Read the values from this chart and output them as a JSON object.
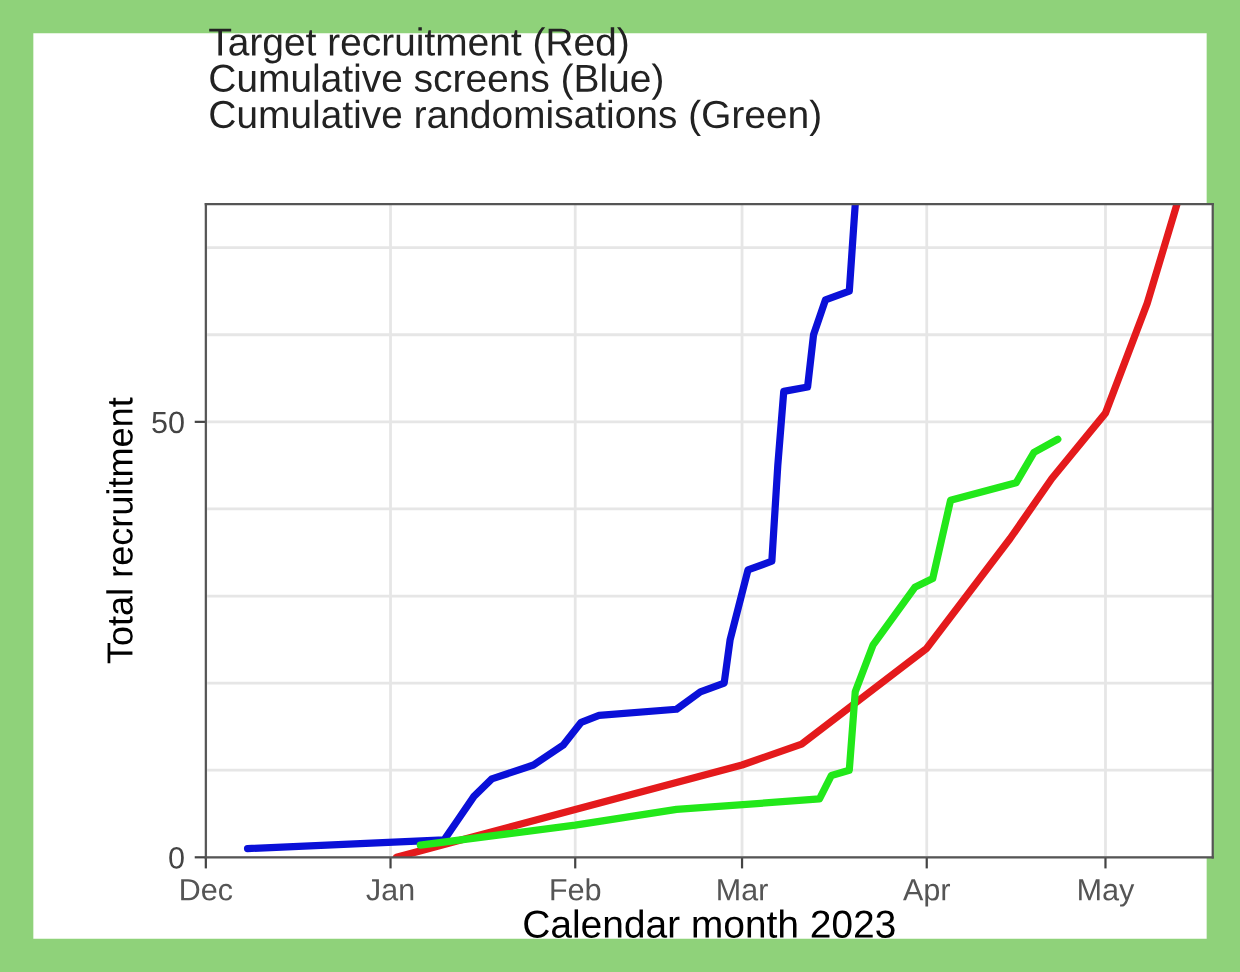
{
  "chart_data": {
    "type": "line",
    "title": "Target recruitment (Red)\nCumulative screens (Blue)\nCumulative randomisations (Green)",
    "xlabel": "Calendar month 2023",
    "ylabel": "Total recruitment",
    "xlim": [
      "2022-12-01",
      "2023-05-19"
    ],
    "ylim": [
      0,
      75
    ],
    "xticks": [
      {
        "value": "2022-12-01",
        "label": "Dec"
      },
      {
        "value": "2023-01-01",
        "label": "Jan"
      },
      {
        "value": "2023-02-01",
        "label": "Feb"
      },
      {
        "value": "2023-03-01",
        "label": "Mar"
      },
      {
        "value": "2023-04-01",
        "label": "Apr"
      },
      {
        "value": "2023-05-01",
        "label": "May"
      }
    ],
    "yticks": [
      0,
      {
        "value": 10,
        "label": null
      },
      {
        "value": 20,
        "label": null
      },
      {
        "value": 30,
        "label": null
      },
      {
        "value": 40,
        "label": null
      },
      50,
      {
        "value": 60,
        "label": null
      },
      {
        "value": 70,
        "label": null
      }
    ],
    "grid": true,
    "line_style": "solid",
    "series": [
      {
        "color": "#e41a1c",
        "x": [
          "2023-01-02",
          "2023-02-01",
          "2023-03-01",
          "2023-03-11",
          "2023-04-01",
          "2023-04-15",
          "2023-04-22",
          "2023-05-01",
          "2023-05-08",
          "2023-05-13"
        ],
        "values": [
          0,
          5.5,
          10.6,
          13,
          24,
          36.6,
          43.5,
          51,
          63.6,
          75
        ]
      },
      {
        "color": "#0a10d8",
        "x": [
          "2022-12-08",
          "2023-01-10",
          "2023-01-12",
          "2023-01-15",
          "2023-01-18",
          "2023-01-25",
          "2023-01-30",
          "2023-02-02",
          "2023-02-05",
          "2023-02-18",
          "2023-02-22",
          "2023-02-26",
          "2023-02-27",
          "2023-03-02",
          "2023-03-06",
          "2023-03-07",
          "2023-03-08",
          "2023-03-12",
          "2023-03-13",
          "2023-03-15",
          "2023-03-19",
          "2023-03-20"
        ],
        "values": [
          1,
          2,
          4,
          7,
          9,
          10.6,
          12.9,
          15.5,
          16.3,
          17,
          19,
          20,
          25,
          33,
          34,
          45,
          53.5,
          54,
          60,
          64,
          65,
          75
        ]
      },
      {
        "color": "#22e81a",
        "x": [
          "2023-01-06",
          "2023-02-01",
          "2023-02-18",
          "2023-03-14",
          "2023-03-16",
          "2023-03-19",
          "2023-03-20",
          "2023-03-23",
          "2023-03-30",
          "2023-04-02",
          "2023-04-05",
          "2023-04-16",
          "2023-04-19",
          "2023-04-23"
        ],
        "values": [
          1.4,
          3.7,
          5.5,
          6.7,
          9.4,
          10,
          19,
          24.4,
          31,
          32,
          41,
          43,
          46.5,
          48
        ]
      }
    ]
  }
}
